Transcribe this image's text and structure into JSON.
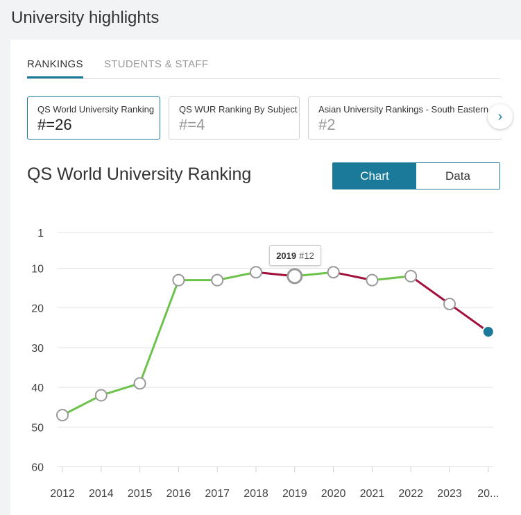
{
  "header": {
    "title": "University highlights"
  },
  "tabs": [
    {
      "label": "RANKINGS",
      "active": true
    },
    {
      "label": "STUDENTS & STAFF",
      "active": false
    }
  ],
  "ranking_cards": [
    {
      "label": "QS World University Ranking",
      "value": "#=26"
    },
    {
      "label": "QS WUR Ranking By Subject",
      "value": "#=4"
    },
    {
      "label": "Asian University Rankings - South Eastern A",
      "value": "#2"
    }
  ],
  "next_icon": "chevron-right-icon",
  "chart_section": {
    "title": "QS World University Ranking",
    "toggle": {
      "chart_label": "Chart",
      "data_label": "Data",
      "selected": "Chart"
    }
  },
  "tooltip": {
    "year": "2019",
    "rank": "#12"
  },
  "colors": {
    "accent": "#1b7a99",
    "improve": "#6cc24a",
    "decline": "#a3123c"
  },
  "chart_data": {
    "type": "line",
    "categories": [
      "2012",
      "2014",
      "2015",
      "2016",
      "2017",
      "2018",
      "2019",
      "2020",
      "2021",
      "2022",
      "2023",
      "20..."
    ],
    "values": [
      47,
      42,
      39,
      13,
      13,
      11,
      12,
      11,
      13,
      12,
      19,
      26
    ],
    "y_ticks": [
      "1",
      "10",
      "20",
      "30",
      "40",
      "50",
      "60"
    ],
    "ylim": [
      1,
      60
    ],
    "y_inverted": true,
    "grid": true,
    "highlight_index": 11
  }
}
